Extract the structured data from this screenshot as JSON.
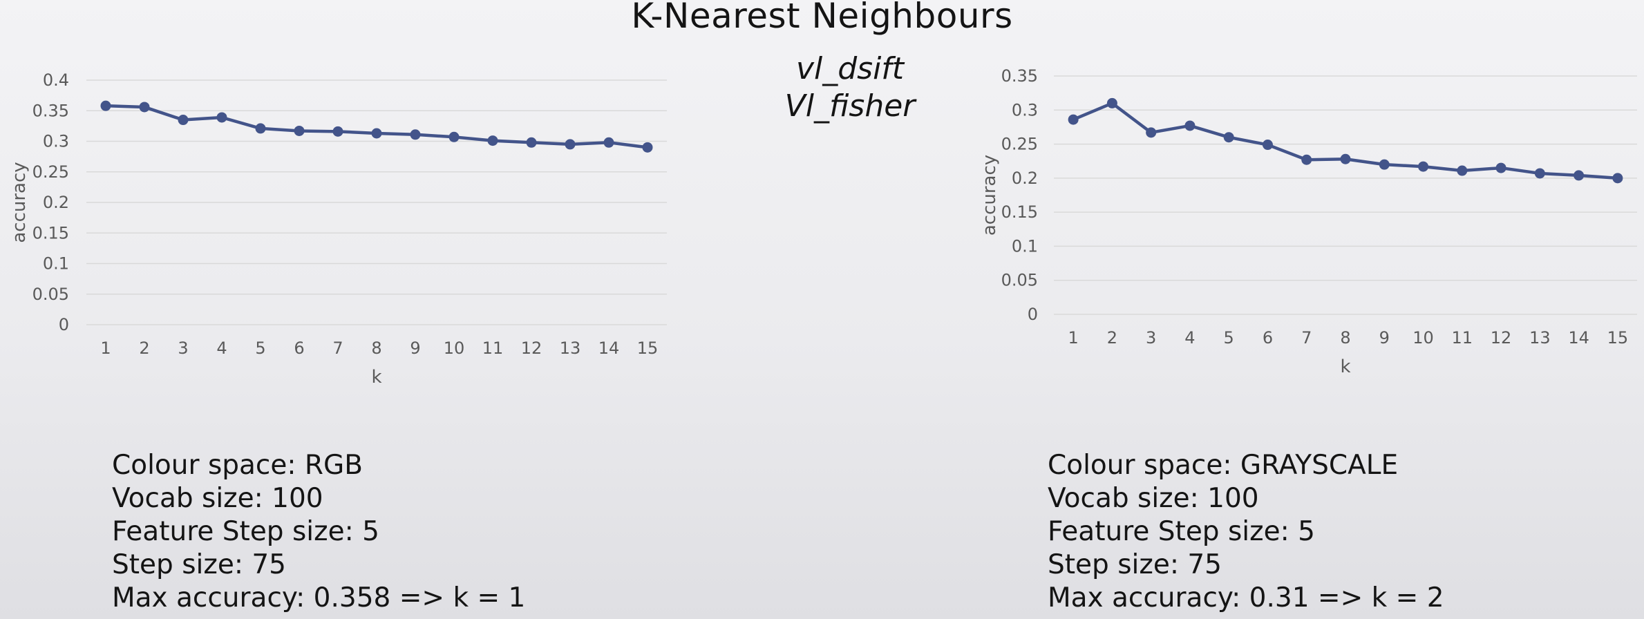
{
  "slide": {
    "title": "K-Nearest Neighbours",
    "subtitle_line1": "vl_dsift",
    "subtitle_line2": "Vl_fisher"
  },
  "colors": {
    "series": "#43548a",
    "grid": "#d9d9d9",
    "tick_text": "#595959"
  },
  "chart_data": [
    {
      "type": "line",
      "title": "",
      "xlabel": "k",
      "ylabel": "accuracy",
      "x": [
        1,
        2,
        3,
        4,
        5,
        6,
        7,
        8,
        9,
        10,
        11,
        12,
        13,
        14,
        15
      ],
      "yticks": [
        "0",
        "0.05",
        "0.1",
        "0.15",
        "0.2",
        "0.25",
        "0.3",
        "0.35",
        "0.4"
      ],
      "ylim": [
        0,
        0.4
      ],
      "grid": true,
      "legend": "none",
      "series": [
        {
          "values": [
            0.358,
            0.356,
            0.335,
            0.339,
            0.321,
            0.317,
            0.316,
            0.313,
            0.311,
            0.307,
            0.301,
            0.298,
            0.295,
            0.298,
            0.29
          ]
        }
      ]
    },
    {
      "type": "line",
      "title": "",
      "xlabel": "k",
      "ylabel": "accuracy",
      "x": [
        1,
        2,
        3,
        4,
        5,
        6,
        7,
        8,
        9,
        10,
        11,
        12,
        13,
        14,
        15
      ],
      "yticks": [
        "0",
        "0.05",
        "0.1",
        "0.15",
        "0.2",
        "0.25",
        "0.3",
        "0.35"
      ],
      "ylim": [
        0,
        0.35
      ],
      "grid": true,
      "legend": "none",
      "series": [
        {
          "values": [
            0.286,
            0.31,
            0.267,
            0.277,
            0.26,
            0.249,
            0.227,
            0.228,
            0.22,
            0.217,
            0.211,
            0.215,
            0.207,
            0.204,
            0.2
          ]
        }
      ]
    }
  ],
  "left_info": [
    "Colour space: RGB",
    "Vocab size: 100",
    "Feature Step size: 5",
    "Step size: 75",
    "Max accuracy: 0.358   => k = 1"
  ],
  "right_info": [
    "Colour space: GRAYSCALE",
    "Vocab size: 100",
    "Feature Step size: 5",
    "Step size: 75",
    "Max accuracy: 0.31   => k = 2"
  ]
}
